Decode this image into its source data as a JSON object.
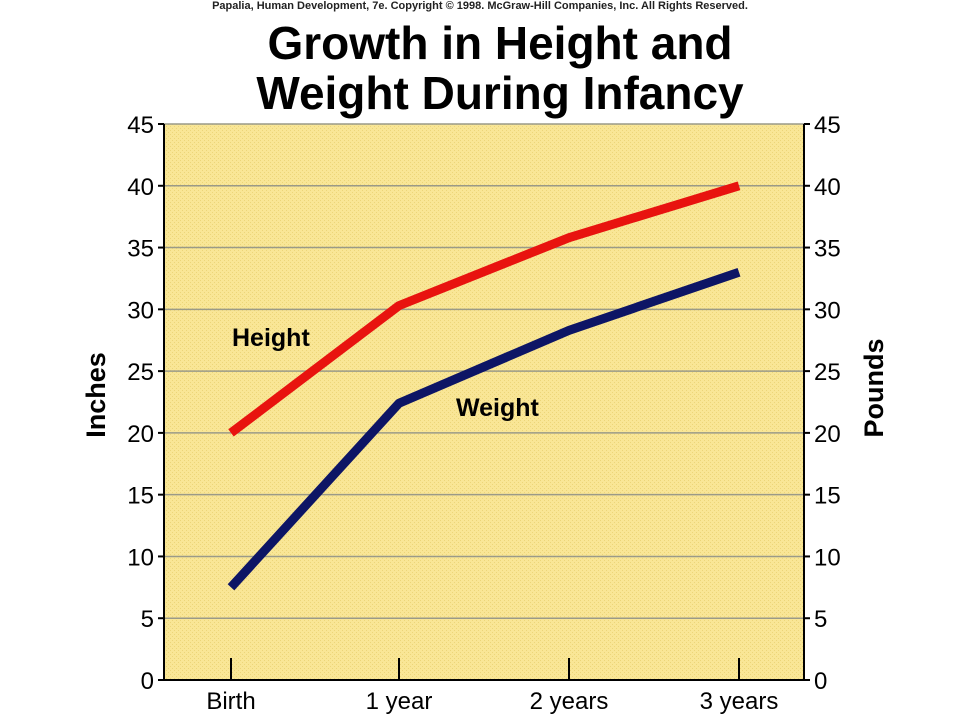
{
  "copyright": "Papalia, Human Development, 7e. Copyright © 1998. McGraw-Hill Companies, Inc. All Rights Reserved.",
  "chart_data": {
    "type": "line",
    "title_lines": [
      "Growth in Height and",
      "Weight During Infancy"
    ],
    "categories": [
      "Birth",
      "1 year",
      "2 years",
      "3 years"
    ],
    "ylabel_left": "Inches",
    "ylabel_right": "Pounds",
    "ylim": [
      0,
      45
    ],
    "yticks": [
      0,
      5,
      10,
      15,
      20,
      25,
      30,
      35,
      40,
      45
    ],
    "grid": true,
    "background_color": "#f9e696",
    "series": [
      {
        "name": "Height",
        "axis": "left",
        "color": "#e8130f",
        "values": [
          20,
          30.3,
          35.8,
          40
        ]
      },
      {
        "name": "Weight",
        "axis": "right",
        "color": "#0d1565",
        "values": [
          7.5,
          22.4,
          28.3,
          33
        ]
      }
    ]
  }
}
